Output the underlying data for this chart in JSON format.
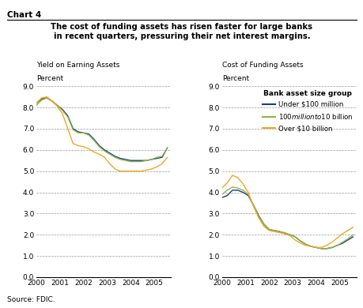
{
  "title_line1": "The cost of funding assets has risen faster for large banks",
  "title_line2": "in recent quarters, pressuring their net interest margins.",
  "chart_label": "Chart 4",
  "source": "Source: FDIC.",
  "left_title1": "Yield on Earning Assets",
  "left_title2": "Percent",
  "right_title1": "Cost of Funding Assets",
  "right_title2": "Percent",
  "legend_title": "Bank asset size group",
  "legend_entries": [
    "Under $100 million",
    "$100 million to $10 billion",
    "Over $10 billion"
  ],
  "colors": {
    "blue": "#1A3A8C",
    "green": "#8DB83A",
    "orange": "#F5A523"
  },
  "x_ticks": [
    2000,
    2001,
    2002,
    2003,
    2004,
    2005
  ],
  "ylim": [
    0.0,
    9.0
  ],
  "yticks": [
    0.0,
    1.0,
    2.0,
    3.0,
    4.0,
    5.0,
    6.0,
    7.0,
    8.0,
    9.0
  ],
  "left": {
    "blue": [
      8.2,
      8.4,
      8.45,
      8.3,
      8.1,
      7.9,
      7.6,
      7.0,
      6.85,
      6.8,
      6.75,
      6.5,
      6.2,
      6.0,
      5.85,
      5.7,
      5.6,
      5.55,
      5.5,
      5.5,
      5.5,
      5.5,
      5.55,
      5.6,
      5.65,
      6.1
    ],
    "green": [
      8.1,
      8.35,
      8.45,
      8.3,
      8.1,
      7.85,
      7.55,
      6.95,
      6.8,
      6.8,
      6.7,
      6.45,
      6.15,
      5.95,
      5.8,
      5.65,
      5.55,
      5.5,
      5.45,
      5.45,
      5.45,
      5.5,
      5.55,
      5.65,
      5.7,
      6.1
    ],
    "orange": [
      8.2,
      8.45,
      8.5,
      8.3,
      8.05,
      7.7,
      7.0,
      6.3,
      6.2,
      6.15,
      6.05,
      5.9,
      5.8,
      5.65,
      5.35,
      5.1,
      5.0,
      5.0,
      5.0,
      5.0,
      5.0,
      5.05,
      5.1,
      5.2,
      5.35,
      5.65
    ]
  },
  "right": {
    "blue": [
      3.75,
      3.85,
      4.1,
      4.1,
      4.0,
      3.85,
      3.4,
      2.9,
      2.5,
      2.25,
      2.2,
      2.15,
      2.05,
      2.0,
      1.9,
      1.7,
      1.55,
      1.45,
      1.4,
      1.35,
      1.35,
      1.4,
      1.5,
      1.6,
      1.75,
      1.9
    ],
    "green": [
      3.9,
      4.1,
      4.25,
      4.2,
      4.1,
      3.9,
      3.4,
      2.85,
      2.5,
      2.25,
      2.2,
      2.15,
      2.1,
      2.0,
      1.9,
      1.7,
      1.55,
      1.45,
      1.4,
      1.35,
      1.35,
      1.4,
      1.5,
      1.65,
      1.8,
      2.0
    ],
    "orange": [
      4.2,
      4.45,
      4.8,
      4.7,
      4.4,
      4.0,
      3.35,
      2.8,
      2.4,
      2.2,
      2.15,
      2.1,
      2.05,
      1.95,
      1.75,
      1.6,
      1.5,
      1.45,
      1.4,
      1.4,
      1.5,
      1.65,
      1.85,
      2.05,
      2.2,
      2.35
    ]
  }
}
